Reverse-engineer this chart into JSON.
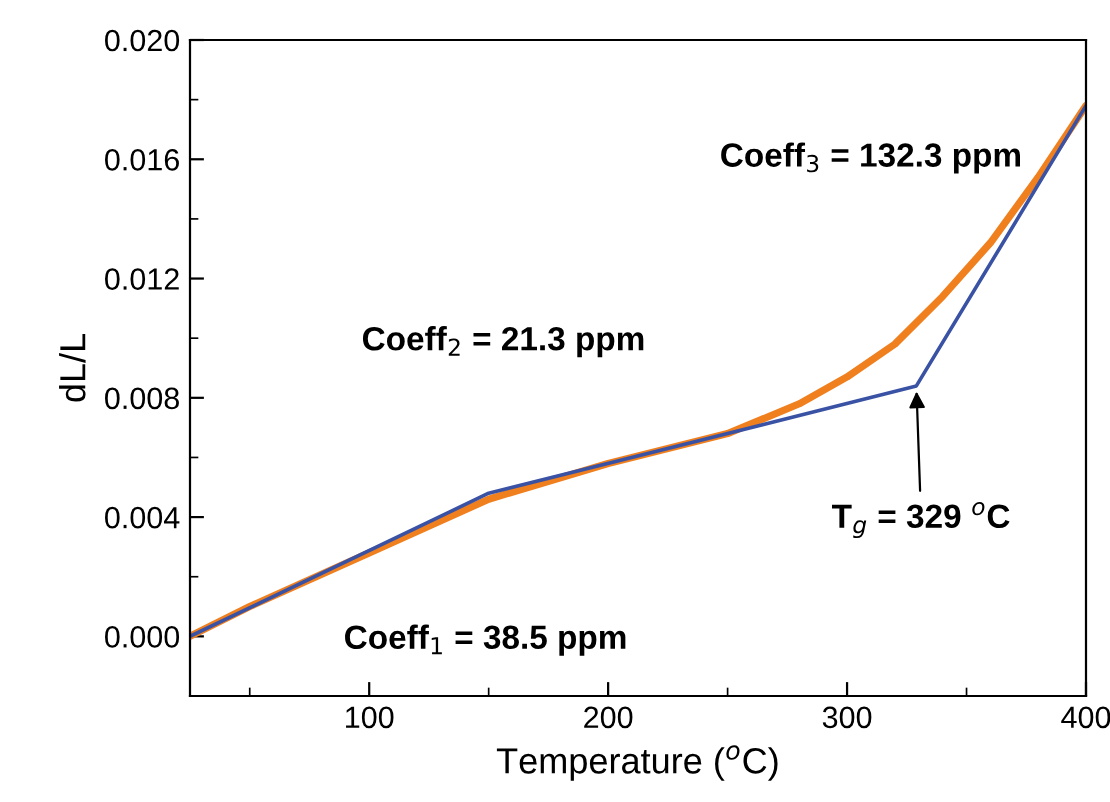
{
  "chart_data": {
    "type": "line",
    "xlabel": "Temperature ($^{o}$C)",
    "ylabel": "dL/L",
    "xlim": [
      25,
      400
    ],
    "xticks": [
      100,
      200,
      300,
      400
    ],
    "ylim": [
      -0.002,
      0.02
    ],
    "yticks": [
      {
        "value": 0,
        "label": "0.000"
      },
      {
        "value": 0.004,
        "label": "0.004"
      },
      {
        "value": 0.008,
        "label": "0.008"
      },
      {
        "value": 0.012,
        "label": "0.012"
      },
      {
        "value": 0.016,
        "label": "0.016"
      },
      {
        "value": 0.02,
        "label": "0.020"
      }
    ],
    "grid": false,
    "legend": false,
    "marker": "none",
    "line_style": "solid",
    "series": [
      {
        "color": "#f07f1e",
        "x": [
          25,
          50,
          100,
          150,
          200,
          250,
          280,
          300,
          320,
          340,
          360,
          380,
          400
        ],
        "values": [
          0,
          0.001,
          0.0028,
          0.0046,
          0.0058,
          0.0068,
          0.0078,
          0.0087,
          0.0098,
          0.0114,
          0.0132,
          0.0154,
          0.0178
        ]
      },
      {
        "color": "#3a52a4",
        "x": [
          25,
          150,
          240,
          329,
          400
        ],
        "values": [
          0,
          0.0048,
          0.0066,
          0.0084,
          0.0178
        ]
      }
    ],
    "annotations": [
      "Coeff$_{1}$ = 38.5 ppm",
      "Coeff$_{2}$ = 21.3 ppm",
      "Coeff$_{3}$ = 132.3 ppm",
      {
        "text": "T$_{g}$ = 329 $^{o}$C",
        "x": 329,
        "y": 0.0084
      }
    ]
  }
}
